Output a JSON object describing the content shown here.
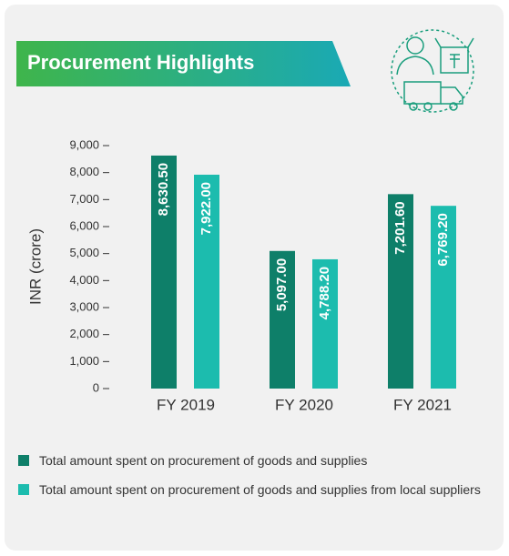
{
  "chart_data": {
    "type": "bar",
    "title": "Procurement Highlights",
    "y_label": "INR (crore)",
    "categories": [
      "FY 2019",
      "FY 2020",
      "FY 2021"
    ],
    "series": [
      {
        "name": "Total amount spent on procurement of goods and supplies",
        "color": "#0e7f69",
        "values": [
          8630.5,
          5097,
          7201.6
        ],
        "value_labels": [
          "8,630.50",
          "5,097.00",
          "7,201.60"
        ]
      },
      {
        "name": "Total amount spent on procurement of goods and supplies from local suppliers",
        "color": "#1cbcae",
        "values": [
          7922,
          4788.2,
          6769.2
        ],
        "value_labels": [
          "7,922.00",
          "4,788.20",
          "6,769.20"
        ]
      }
    ],
    "ylim": [
      0,
      9000
    ],
    "yticks": [
      0,
      {
        "value": 1000,
        "label": "1,000"
      },
      {
        "value": 2000,
        "label": "2,000"
      },
      {
        "value": 3000,
        "label": "3,000"
      },
      {
        "value": 4000,
        "label": "4,000"
      },
      {
        "value": 5000,
        "label": "5,000"
      },
      {
        "value": 6000,
        "label": "6,000"
      },
      {
        "value": 7000,
        "label": "7,000"
      },
      {
        "value": 8000,
        "label": "8,000"
      },
      {
        "value": 9000,
        "label": "9,000"
      }
    ],
    "grid": false
  }
}
